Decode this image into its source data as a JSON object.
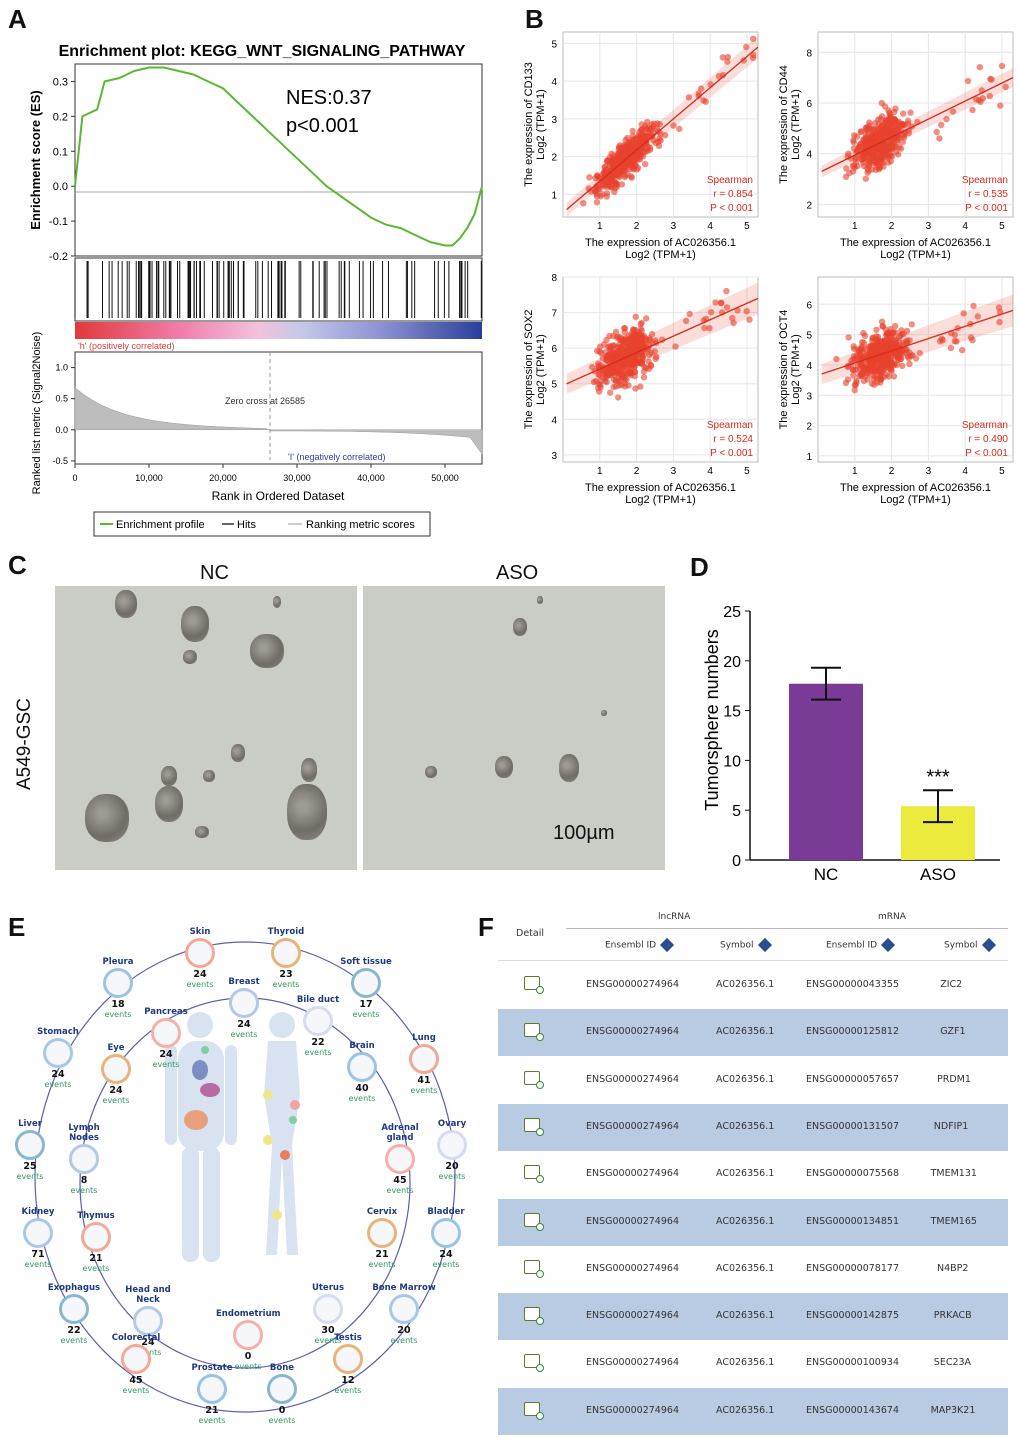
{
  "panels": {
    "a": "A",
    "b": "B",
    "c": "C",
    "d": "D",
    "e": "E",
    "f": "F"
  },
  "gsea": {
    "title": "Enrichment plot: KEGG_WNT_SIGNALING_PATHWAY",
    "nes": "NES:0.37",
    "pval": "p<0.001",
    "es_label": "Enrichment score (ES)",
    "es_ticks": [
      "0.3",
      "0.2",
      "0.1",
      "0.0",
      "-0.1",
      "-0.2"
    ],
    "pos_label": "'h' (positively correlated)",
    "neg_label": "'I' (negatively correlated)",
    "zero_cross": "Zero cross at 26585",
    "metric_label": "Ranked list metric (Signal2Noise)",
    "metric_ticks": [
      "1.0",
      "0.5",
      "0.0",
      "-0.5"
    ],
    "x_ticks": [
      "0",
      "10,000",
      "20,000",
      "30,000",
      "40,000",
      "50,000"
    ],
    "xlabel": "Rank in Ordered Dataset",
    "legend": [
      "Enrichment profile",
      "Hits",
      "Ranking metric scores"
    ],
    "colors": {
      "curve": "#5bb832",
      "pos": "#e03a3a",
      "neg": "#2a3f9a"
    }
  },
  "chart_data": [
    {
      "type": "line",
      "title": "Enrichment plot: KEGG_WNT_SIGNALING_PATHWAY",
      "xlabel": "Rank in Ordered Dataset",
      "ylabel": "Enrichment score (ES)",
      "x": [
        0,
        1000,
        2000,
        3000,
        4000,
        6000,
        8000,
        10000,
        12000,
        14000,
        16000,
        18000,
        20000,
        22000,
        24000,
        26000,
        28000,
        30000,
        32000,
        34000,
        36000,
        38000,
        40000,
        42000,
        44000,
        46000,
        48000,
        50000,
        51000,
        52000,
        53000,
        54000,
        55000
      ],
      "y": [
        0.0,
        0.2,
        0.21,
        0.22,
        0.3,
        0.31,
        0.33,
        0.34,
        0.34,
        0.33,
        0.32,
        0.3,
        0.28,
        0.24,
        0.2,
        0.16,
        0.12,
        0.08,
        0.04,
        0.0,
        -0.03,
        -0.06,
        -0.09,
        -0.11,
        -0.12,
        -0.14,
        -0.16,
        -0.17,
        -0.17,
        -0.15,
        -0.12,
        -0.08,
        0.0
      ],
      "xlim": [
        0,
        55000
      ],
      "ylim": [
        -0.2,
        0.35
      ]
    },
    {
      "type": "scatter",
      "xlabel": "The expression of AC026356.1 Log2 (TPM+1)",
      "ylabel": "The expression of CD133 Log2 (TPM+1)",
      "xlim": [
        0,
        5.3
      ],
      "ylim": [
        0.4,
        5.3
      ],
      "x_ticks": [
        "1",
        "2",
        "3",
        "4",
        "5"
      ],
      "y_ticks": [
        "1",
        "2",
        "3",
        "4",
        "5"
      ],
      "fit": {
        "x0": 0.1,
        "y0": 0.6,
        "x1": 5.3,
        "y1": 4.9
      },
      "stats": [
        "Spearman",
        "r = 0.854",
        "P < 0.001"
      ]
    },
    {
      "type": "scatter",
      "xlabel": "The expression of AC026356.1 Log2 (TPM+1)",
      "ylabel": "The expression of CD44 Log2 (TPM+1)",
      "xlim": [
        0,
        5.3
      ],
      "ylim": [
        1.5,
        8.8
      ],
      "x_ticks": [
        "1",
        "2",
        "3",
        "4",
        "5"
      ],
      "y_ticks": [
        "2",
        "4",
        "6",
        "8"
      ],
      "fit": {
        "x0": 0.1,
        "y0": 3.3,
        "x1": 5.3,
        "y1": 7.0
      },
      "stats": [
        "Spearman",
        "r = 0.535",
        "P < 0.001"
      ]
    },
    {
      "type": "scatter",
      "xlabel": "The expression of AC026356.1 Log2 (TPM+1)",
      "ylabel": "The expression of SOX2 Log2 (TPM+1)",
      "xlim": [
        0,
        5.3
      ],
      "ylim": [
        2.8,
        8.0
      ],
      "x_ticks": [
        "1",
        "2",
        "3",
        "4",
        "5"
      ],
      "y_ticks": [
        "3",
        "4",
        "5",
        "6",
        "7",
        "8"
      ],
      "fit": {
        "x0": 0.1,
        "y0": 5.0,
        "x1": 5.3,
        "y1": 7.4
      },
      "stats": [
        "Spearman",
        "r = 0.524",
        "P < 0.001"
      ]
    },
    {
      "type": "scatter",
      "xlabel": "The expression of AC026356.1 Log2 (TPM+1)",
      "ylabel": "The expression of OCT4 Log2 (TPM+1)",
      "xlim": [
        0,
        5.3
      ],
      "ylim": [
        0.8,
        6.9
      ],
      "x_ticks": [
        "1",
        "2",
        "3",
        "4",
        "5"
      ],
      "y_ticks": [
        "1",
        "2",
        "3",
        "4",
        "5",
        "6"
      ],
      "fit": {
        "x0": 0.1,
        "y0": 3.7,
        "x1": 5.3,
        "y1": 5.8
      },
      "stats": [
        "Spearman",
        "r = 0.490",
        "P < 0.001"
      ]
    },
    {
      "type": "bar",
      "categories": [
        "NC",
        "ASO"
      ],
      "values": [
        17.7,
        5.4
      ],
      "errors": [
        1.6,
        1.6
      ],
      "ylabel": "Tumorsphere numbers",
      "ylim": [
        0,
        25
      ],
      "y_ticks": [
        "0",
        "5",
        "10",
        "15",
        "20",
        "25"
      ],
      "annotation": "***",
      "colors": [
        "#7a3b97",
        "#ecea3c"
      ]
    }
  ],
  "micro": {
    "nc": "NC",
    "aso": "ASO",
    "cell_line": "A549-GSC",
    "scale": "100µm"
  },
  "organs": [
    {
      "name": "Skin",
      "n": "24",
      "ev": "events"
    },
    {
      "name": "Thyroid",
      "n": "23",
      "ev": "events"
    },
    {
      "name": "Pleura",
      "n": "18",
      "ev": "events"
    },
    {
      "name": "Soft tissue",
      "n": "17",
      "ev": "events"
    },
    {
      "name": "Breast",
      "n": "24",
      "ev": "events"
    },
    {
      "name": "Pancreas",
      "n": "24",
      "ev": "events"
    },
    {
      "name": "Bile duct",
      "n": "22",
      "ev": "events"
    },
    {
      "name": "Stomach",
      "n": "24",
      "ev": "events"
    },
    {
      "name": "Lung",
      "n": "41",
      "ev": "events"
    },
    {
      "name": "Eye",
      "n": "24",
      "ev": "events"
    },
    {
      "name": "Brain",
      "n": "40",
      "ev": "events"
    },
    {
      "name": "Liver",
      "n": "25",
      "ev": "events"
    },
    {
      "name": "Lymph Nodes",
      "n": "8",
      "ev": "events"
    },
    {
      "name": "Adrenal gland",
      "n": "45",
      "ev": "events"
    },
    {
      "name": "Ovary",
      "n": "20",
      "ev": "events"
    },
    {
      "name": "Kidney",
      "n": "71",
      "ev": "events"
    },
    {
      "name": "Thymus",
      "n": "21",
      "ev": "events"
    },
    {
      "name": "Cervix",
      "n": "21",
      "ev": "events"
    },
    {
      "name": "Bladder",
      "n": "24",
      "ev": "events"
    },
    {
      "name": "Exophagus",
      "n": "22",
      "ev": "events"
    },
    {
      "name": "Head and Neck",
      "n": "24",
      "ev": "events"
    },
    {
      "name": "Endometrium",
      "n": "0",
      "ev": "events"
    },
    {
      "name": "Uterus",
      "n": "30",
      "ev": "events"
    },
    {
      "name": "Bone Marrow",
      "n": "20",
      "ev": "events"
    },
    {
      "name": "Colorectal",
      "n": "45",
      "ev": "events"
    },
    {
      "name": "Testis",
      "n": "12",
      "ev": "events"
    },
    {
      "name": "Prostate",
      "n": "21",
      "ev": "events"
    },
    {
      "name": "Bone",
      "n": "0",
      "ev": "events"
    }
  ],
  "table": {
    "detail": "Detail",
    "lncrna": "lncRNA",
    "mrna": "mRNA",
    "h_ens1": "Ensembl ID",
    "h_sym1": "Symbol",
    "h_ens2": "Ensembl ID",
    "h_sym2": "Symbol",
    "rows": [
      {
        "lnc_id": "ENSG00000274964",
        "lnc_sym": "AC026356.1",
        "m_id": "ENSG00000043355",
        "m_sym": "ZIC2"
      },
      {
        "lnc_id": "ENSG00000274964",
        "lnc_sym": "AC026356.1",
        "m_id": "ENSG00000125812",
        "m_sym": "GZF1"
      },
      {
        "lnc_id": "ENSG00000274964",
        "lnc_sym": "AC026356.1",
        "m_id": "ENSG00000057657",
        "m_sym": "PRDM1"
      },
      {
        "lnc_id": "ENSG00000274964",
        "lnc_sym": "AC026356.1",
        "m_id": "ENSG00000131507",
        "m_sym": "NDFIP1"
      },
      {
        "lnc_id": "ENSG00000274964",
        "lnc_sym": "AC026356.1",
        "m_id": "ENSG00000075568",
        "m_sym": "TMEM131"
      },
      {
        "lnc_id": "ENSG00000274964",
        "lnc_sym": "AC026356.1",
        "m_id": "ENSG00000134851",
        "m_sym": "TMEM165"
      },
      {
        "lnc_id": "ENSG00000274964",
        "lnc_sym": "AC026356.1",
        "m_id": "ENSG00000078177",
        "m_sym": "N4BP2"
      },
      {
        "lnc_id": "ENSG00000274964",
        "lnc_sym": "AC026356.1",
        "m_id": "ENSG00000142875",
        "m_sym": "PRKACB"
      },
      {
        "lnc_id": "ENSG00000274964",
        "lnc_sym": "AC026356.1",
        "m_id": "ENSG00000100934",
        "m_sym": "SEC23A"
      },
      {
        "lnc_id": "ENSG00000274964",
        "lnc_sym": "AC026356.1",
        "m_id": "ENSG00000143674",
        "m_sym": "MAP3K21"
      }
    ]
  }
}
